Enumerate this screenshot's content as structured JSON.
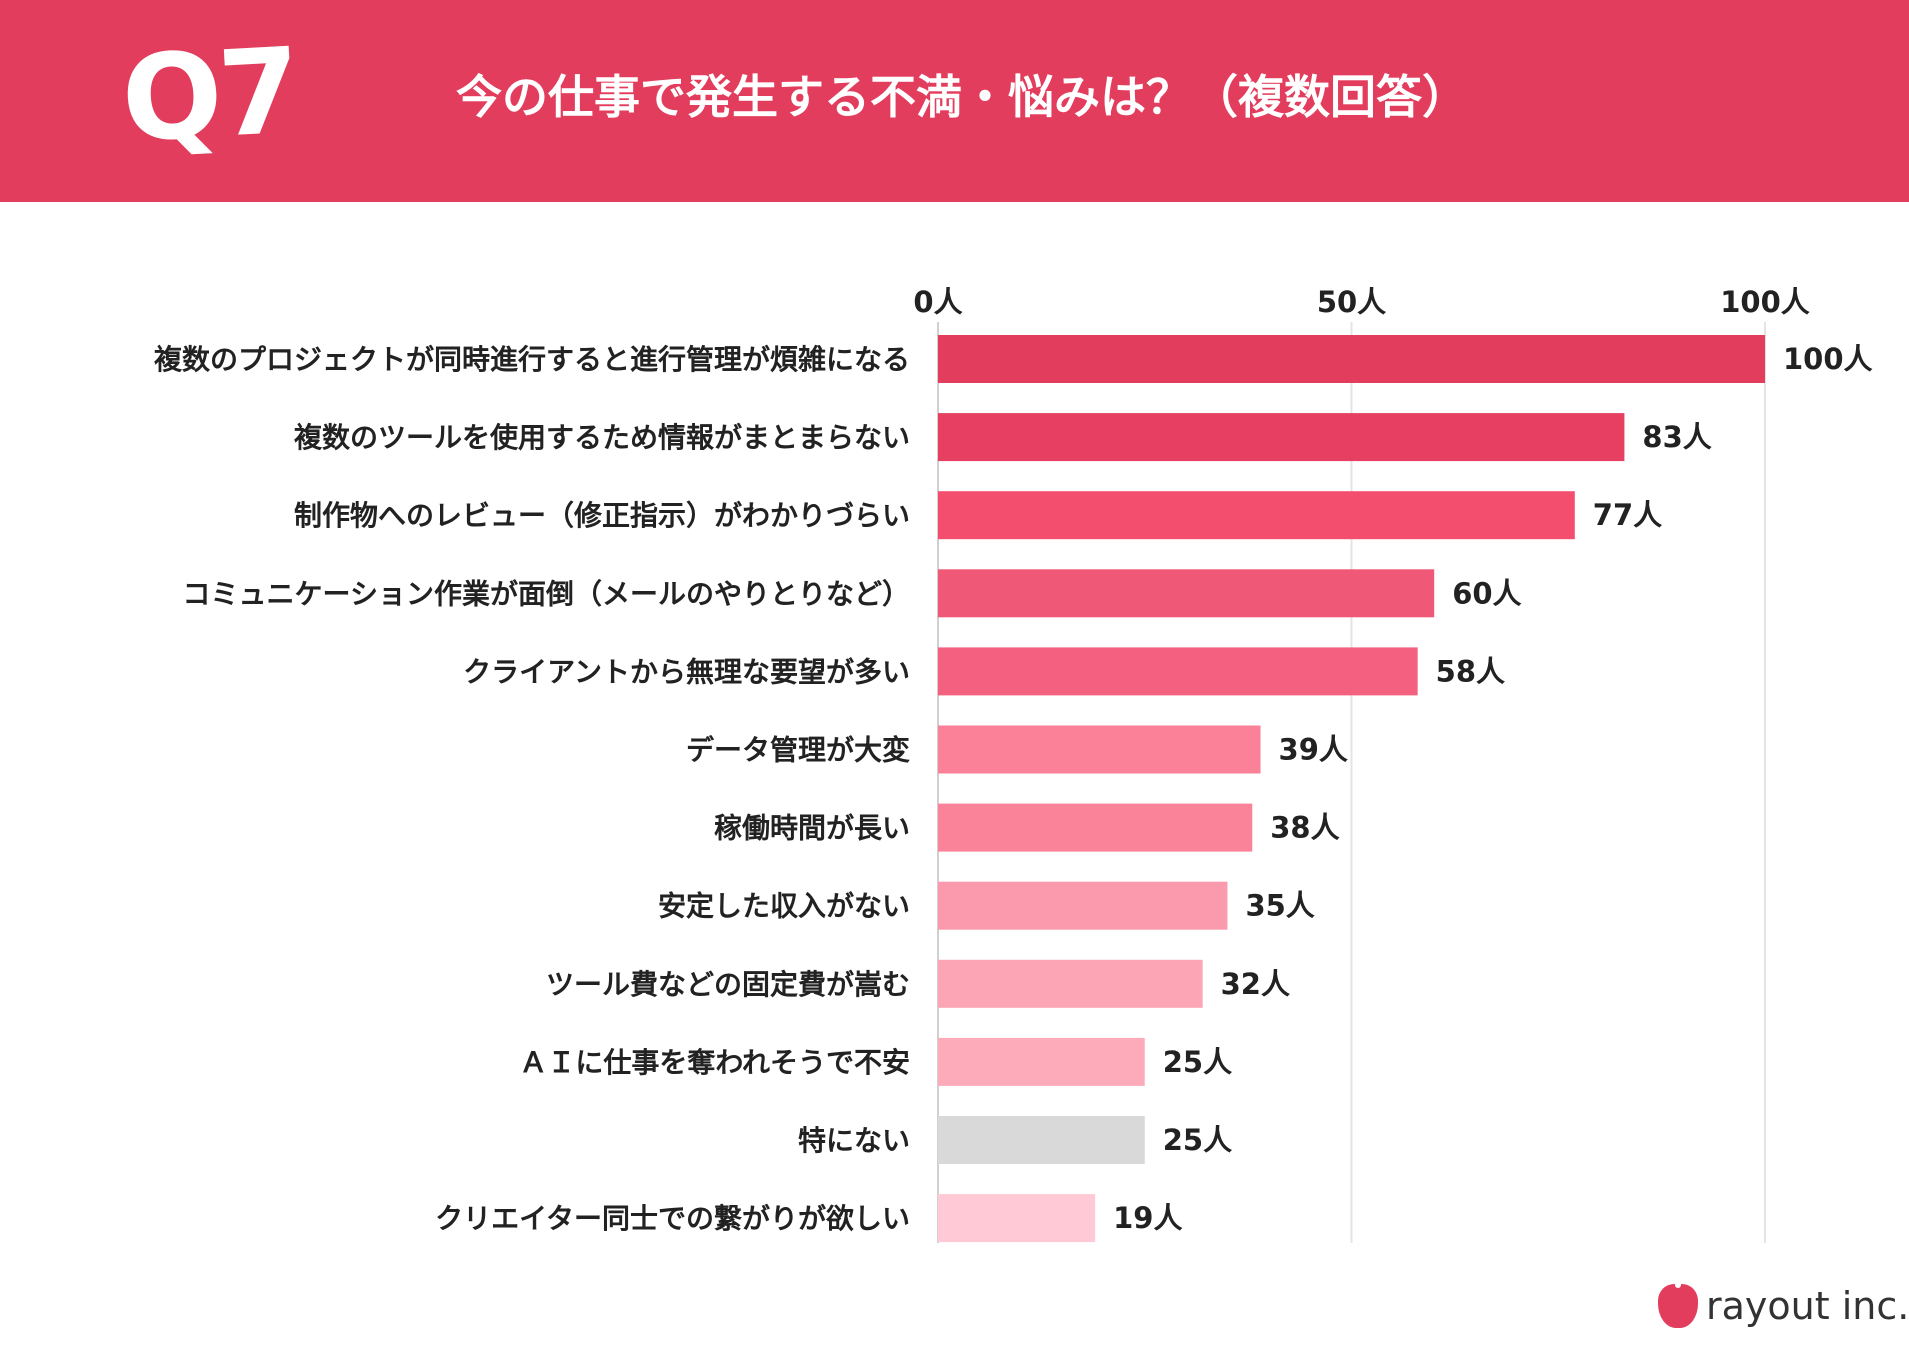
{
  "header": {
    "question_number": "Q7",
    "title": "今の仕事で発生する不満・悩みは？（複数回答）"
  },
  "chart_data": {
    "type": "bar",
    "orientation": "horizontal",
    "title": "今の仕事で発生する不満・悩みは？（複数回答）",
    "unit": "人",
    "xlim": [
      0,
      100
    ],
    "ticks": [
      0,
      50,
      100
    ],
    "tick_labels": [
      "0人",
      "50人",
      "100人"
    ],
    "grid": true,
    "categories": [
      "複数のプロジェクトが同時進行すると進行管理が煩雑になる",
      "複数のツールを使用するため情報がまとまらない",
      "制作物へのレビュー（修正指示）がわかりづらい",
      "コミュニケーション作業が面倒（メールのやりとりなど）",
      "クライアントから無理な要望が多い",
      "データ管理が大変",
      "稼働時間が長い",
      "安定した収入がない",
      "ツール費などの固定費が嵩む",
      "ＡＩに仕事を奪われそうで不安",
      "特にない",
      "クリエイター同士での繋がりが欲しい"
    ],
    "values": [
      100,
      83,
      77,
      60,
      58,
      39,
      38,
      35,
      32,
      25,
      25,
      19
    ],
    "value_labels": [
      "100人",
      "83人",
      "77人",
      "60人",
      "58人",
      "39人",
      "38人",
      "35人",
      "32人",
      "25人",
      "25人",
      "19人"
    ],
    "colors": [
      "#e33d5d",
      "#e63f62",
      "#f44e6f",
      "#f05877",
      "#f46180",
      "#fa8198",
      "#fa8399",
      "#fb9aac",
      "#fba5b5",
      "#fdabbb",
      "#d9d9d9",
      "#ffcad5"
    ]
  },
  "brand": {
    "name": "rayout inc.",
    "icon": "apple-logo-icon"
  }
}
